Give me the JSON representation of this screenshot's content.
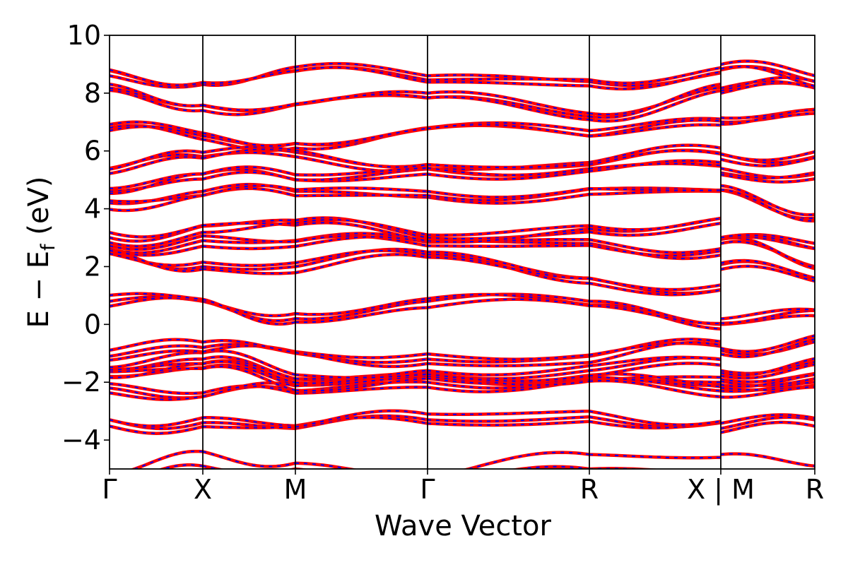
{
  "chart_data": {
    "type": "line",
    "x": {
      "label": "Wave Vector",
      "kpath_labels": [
        "Γ",
        "X",
        "M",
        "Γ",
        "R",
        "X | M",
        "R"
      ]
    },
    "y": {
      "label": "E − E",
      "label_sub": "f",
      "label_unit": " (eV)",
      "ylim": [
        -5,
        10
      ],
      "ticks": [
        10,
        8,
        6,
        4,
        2,
        0,
        -4
      ],
      "tick_labels": [
        "10",
        "8",
        "6",
        "4",
        "2",
        "0",
        "−4"
      ],
      "neg2_label": "−2"
    },
    "series_style": {
      "primary_color": "#ff0000",
      "overlay_color": "#0000ff",
      "overlay_dash": "dashed"
    },
    "bands": [
      [
        -3.3,
        -3.4,
        -3.6,
        -3.3,
        -3.2,
        -3.4,
        -3.6,
        -3.3
      ],
      [
        -2.2,
        -2.5,
        -2.3,
        -2.0,
        -1.9,
        -2.0,
        -2.3,
        -2.0
      ],
      [
        -1.8,
        -1.5,
        -2.1,
        -1.8,
        -1.9,
        -2.3,
        -1.9,
        -1.7
      ],
      [
        -1.6,
        -1.2,
        -1.9,
        -1.7,
        -1.6,
        -1.2,
        -1.6,
        -1.3
      ],
      [
        -1.1,
        -0.8,
        -1.0,
        -1.2,
        -1.1,
        -0.6,
        -0.9,
        -0.6
      ],
      [
        0.8,
        0.8,
        0.2,
        0.8,
        0.8,
        0.0,
        0.0,
        0.3
      ],
      [
        2.5,
        2.0,
        2.0,
        2.5,
        1.6,
        1.2,
        1.9,
        1.5
      ],
      [
        2.6,
        2.9,
        2.9,
        2.9,
        2.8,
        2.4,
        2.8,
        2.0
      ],
      [
        3.0,
        3.4,
        3.6,
        3.0,
        3.2,
        3.5,
        3.0,
        2.8
      ],
      [
        4.2,
        4.6,
        4.6,
        4.4,
        4.5,
        4.6,
        4.8,
        3.8
      ],
      [
        4.7,
        5.2,
        5.0,
        5.2,
        5.3,
        5.6,
        5.4,
        5.2
      ],
      [
        5.4,
        5.8,
        5.8,
        5.4,
        5.6,
        6.1,
        5.9,
        5.8
      ],
      [
        6.8,
        6.4,
        6.1,
        6.8,
        6.7,
        7.1,
        7.0,
        7.3
      ],
      [
        8.1,
        7.4,
        7.6,
        8.0,
        7.3,
        8.2,
        8.0,
        8.2
      ],
      [
        8.6,
        8.3,
        8.9,
        8.6,
        8.4,
        8.7,
        8.8,
        8.4
      ]
    ],
    "grid": false,
    "legend": "none"
  }
}
